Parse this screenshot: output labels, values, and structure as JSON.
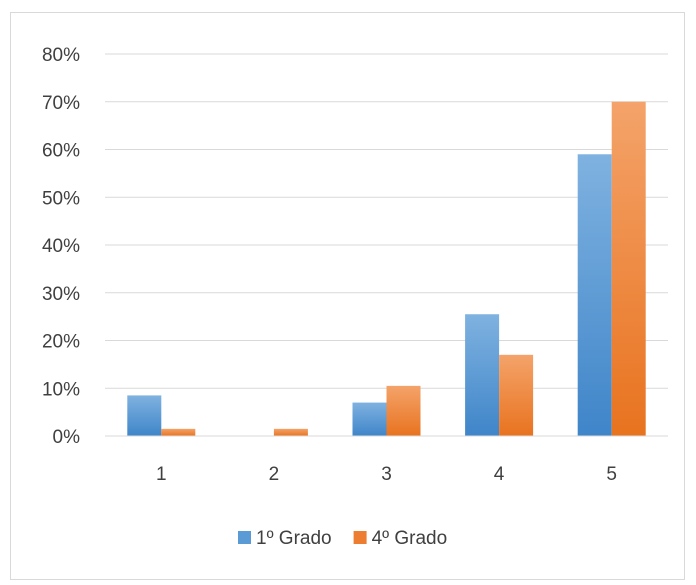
{
  "chart_data": {
    "type": "bar",
    "categories": [
      "1",
      "2",
      "3",
      "4",
      "5"
    ],
    "series": [
      {
        "name": "1º Grado",
        "color": "#5b9bd5",
        "values": [
          8.5,
          0,
          7,
          25.5,
          59
        ]
      },
      {
        "name": "4º Grado",
        "color": "#ed7d31",
        "values": [
          1.5,
          1.5,
          10.5,
          17,
          70
        ]
      }
    ],
    "yticks": [
      "0%",
      "10%",
      "20%",
      "30%",
      "40%",
      "50%",
      "60%",
      "70%",
      "80%"
    ],
    "ylim": [
      0,
      80
    ],
    "grid": true,
    "legend_position": "bottom"
  }
}
